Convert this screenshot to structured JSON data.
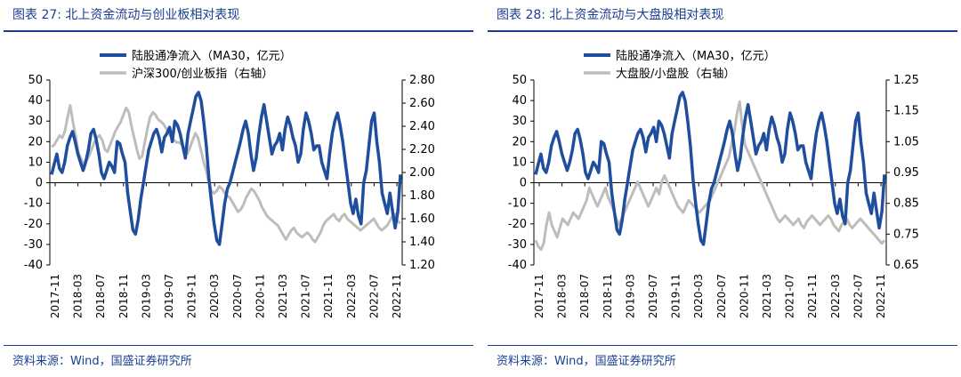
{
  "charts": [
    {
      "title": "图表 27:  北上资金流动与创业板相对表现",
      "source": "资料来源：Wind，国盛证券研究所",
      "chart_data": {
        "type": "line",
        "legend_position": "top",
        "grid": false,
        "x_labels": [
          "2017-11",
          "2018-03",
          "2018-07",
          "2018-11",
          "2019-03",
          "2019-07",
          "2019-11",
          "2020-03",
          "2020-07",
          "2020-11",
          "2021-03",
          "2021-07",
          "2021-11",
          "2022-03",
          "2022-07",
          "2022-11"
        ],
        "y_left": {
          "min": -40,
          "max": 50,
          "ticks": [
            50,
            40,
            30,
            20,
            10,
            0,
            -10,
            -20,
            -30,
            -40
          ]
        },
        "y_right": {
          "min": 1.2,
          "max": 2.8,
          "ticks": [
            "2.80",
            "2.60",
            "2.40",
            "2.20",
            "2.00",
            "1.80",
            "1.60",
            "1.40",
            "1.20"
          ]
        },
        "series": [
          {
            "name": "陆股通净流入（MA30，亿元）",
            "axis": "left",
            "color": "#1f4e9e",
            "values": [
              4,
              9,
              14,
              7,
              5,
              10,
              18,
              22,
              25,
              20,
              14,
              10,
              6,
              10,
              16,
              24,
              26,
              21,
              14,
              5,
              2,
              6,
              10,
              8,
              5,
              20,
              19,
              14,
              10,
              -5,
              -14,
              -23,
              -25,
              -18,
              -8,
              0,
              8,
              16,
              20,
              24,
              26,
              22,
              15,
              22,
              24,
              27,
              20,
              30,
              28,
              24,
              18,
              12,
              24,
              30,
              36,
              42,
              44,
              40,
              30,
              18,
              2,
              -10,
              -20,
              -28,
              -30,
              -20,
              -10,
              -3,
              0,
              5,
              10,
              15,
              20,
              26,
              30,
              24,
              14,
              6,
              12,
              23,
              32,
              38,
              30,
              22,
              14,
              18,
              20,
              24,
              16,
              26,
              32,
              28,
              22,
              18,
              10,
              14,
              26,
              34,
              30,
              24,
              16,
              18,
              18,
              10,
              6,
              2,
              14,
              24,
              30,
              34,
              28,
              20,
              10,
              0,
              -10,
              -15,
              -8,
              -16,
              -20,
              0,
              6,
              18,
              30,
              34,
              20,
              10,
              -5,
              -10,
              -15,
              -5,
              -14,
              -22,
              -14,
              4
            ]
          },
          {
            "name": "沪深300/创业板指（右轴）",
            "axis": "right",
            "color": "#bdbdbd",
            "values": [
              2.22,
              2.24,
              2.28,
              2.32,
              2.3,
              2.36,
              2.48,
              2.58,
              2.44,
              2.32,
              2.18,
              2.12,
              2.08,
              2.1,
              2.14,
              2.2,
              2.26,
              2.3,
              2.32,
              2.28,
              2.2,
              2.18,
              2.24,
              2.3,
              2.36,
              2.4,
              2.44,
              2.5,
              2.56,
              2.52,
              2.4,
              2.3,
              2.2,
              2.12,
              2.14,
              2.26,
              2.38,
              2.48,
              2.52,
              2.5,
              2.46,
              2.44,
              2.42,
              2.38,
              2.34,
              2.3,
              2.28,
              2.26,
              2.26,
              2.24,
              2.18,
              2.16,
              2.22,
              2.28,
              2.34,
              2.3,
              2.2,
              2.1,
              2.02,
              1.92,
              1.84,
              1.82,
              1.84,
              1.88,
              1.86,
              1.82,
              1.8,
              1.78,
              1.74,
              1.7,
              1.66,
              1.68,
              1.72,
              1.78,
              1.82,
              1.86,
              1.84,
              1.8,
              1.76,
              1.7,
              1.66,
              1.62,
              1.6,
              1.58,
              1.56,
              1.54,
              1.5,
              1.46,
              1.42,
              1.46,
              1.5,
              1.52,
              1.48,
              1.46,
              1.44,
              1.46,
              1.48,
              1.46,
              1.42,
              1.4,
              1.44,
              1.48,
              1.54,
              1.58,
              1.6,
              1.62,
              1.64,
              1.6,
              1.58,
              1.62,
              1.64,
              1.6,
              1.58,
              1.56,
              1.54,
              1.52,
              1.5,
              1.52,
              1.54,
              1.56,
              1.58,
              1.6,
              1.56,
              1.52,
              1.5,
              1.52,
              1.54,
              1.58,
              1.62,
              1.64,
              1.58,
              1.56
            ]
          }
        ]
      }
    },
    {
      "title": "图表 28:  北上资金流动与大盘股相对表现",
      "source": "资料来源：Wind，国盛证券研究所",
      "chart_data": {
        "type": "line",
        "legend_position": "top",
        "grid": false,
        "x_labels": [
          "2017-11",
          "2018-03",
          "2018-07",
          "2018-11",
          "2019-03",
          "2019-07",
          "2019-11",
          "2020-03",
          "2020-07",
          "2020-11",
          "2021-03",
          "2021-07",
          "2021-11",
          "2022-03",
          "2022-07",
          "2022-11"
        ],
        "y_left": {
          "min": -40,
          "max": 50,
          "ticks": [
            50,
            40,
            30,
            20,
            10,
            0,
            -10,
            -20,
            -30,
            -40
          ]
        },
        "y_right": {
          "min": 0.65,
          "max": 1.25,
          "ticks": [
            "1.25",
            "1.15",
            "1.05",
            "0.95",
            "0.85",
            "0.75",
            "0.65"
          ]
        },
        "series": [
          {
            "name": "陆股通净流入（MA30，亿元）",
            "axis": "left",
            "color": "#1f4e9e",
            "values": [
              4,
              9,
              14,
              7,
              5,
              10,
              18,
              22,
              25,
              20,
              14,
              10,
              6,
              10,
              16,
              24,
              26,
              21,
              14,
              5,
              2,
              6,
              10,
              8,
              5,
              20,
              19,
              14,
              10,
              -5,
              -14,
              -23,
              -25,
              -18,
              -8,
              0,
              8,
              16,
              20,
              24,
              26,
              22,
              15,
              22,
              24,
              27,
              20,
              30,
              28,
              24,
              18,
              12,
              24,
              30,
              36,
              42,
              44,
              40,
              30,
              18,
              2,
              -10,
              -20,
              -28,
              -30,
              -20,
              -10,
              -3,
              0,
              5,
              10,
              15,
              20,
              26,
              30,
              24,
              14,
              6,
              12,
              23,
              32,
              38,
              30,
              22,
              14,
              18,
              20,
              24,
              16,
              26,
              32,
              28,
              22,
              18,
              10,
              14,
              26,
              34,
              30,
              24,
              16,
              18,
              18,
              10,
              6,
              2,
              14,
              24,
              30,
              34,
              28,
              20,
              10,
              0,
              -10,
              -15,
              -8,
              -16,
              -20,
              0,
              6,
              18,
              30,
              34,
              20,
              10,
              -5,
              -10,
              -15,
              -5,
              -14,
              -22,
              -14,
              4
            ]
          },
          {
            "name": "大盘股/小盘股（右轴）",
            "axis": "right",
            "color": "#bdbdbd",
            "values": [
              0.73,
              0.71,
              0.7,
              0.72,
              0.78,
              0.82,
              0.78,
              0.76,
              0.74,
              0.77,
              0.8,
              0.79,
              0.78,
              0.8,
              0.82,
              0.81,
              0.8,
              0.82,
              0.84,
              0.86,
              0.9,
              0.88,
              0.86,
              0.84,
              0.86,
              0.88,
              0.9,
              0.87,
              0.85,
              0.83,
              0.8,
              0.78,
              0.8,
              0.82,
              0.84,
              0.86,
              0.88,
              0.9,
              0.92,
              0.9,
              0.88,
              0.86,
              0.84,
              0.86,
              0.88,
              0.9,
              0.88,
              0.92,
              0.94,
              0.92,
              0.9,
              0.88,
              0.86,
              0.84,
              0.83,
              0.82,
              0.84,
              0.86,
              0.85,
              0.84,
              0.83,
              0.82,
              0.83,
              0.84,
              0.85,
              0.86,
              0.88,
              0.9,
              0.92,
              0.94,
              0.96,
              0.98,
              1.0,
              1.04,
              1.08,
              1.14,
              1.18,
              1.1,
              1.04,
              1.02,
              1.0,
              0.98,
              0.96,
              0.94,
              0.92,
              0.9,
              0.88,
              0.86,
              0.84,
              0.82,
              0.8,
              0.79,
              0.8,
              0.81,
              0.8,
              0.79,
              0.78,
              0.79,
              0.8,
              0.78,
              0.77,
              0.79,
              0.8,
              0.81,
              0.8,
              0.79,
              0.78,
              0.79,
              0.8,
              0.81,
              0.8,
              0.78,
              0.77,
              0.76,
              0.78,
              0.79,
              0.8,
              0.78,
              0.77,
              0.78,
              0.79,
              0.8,
              0.79,
              0.78,
              0.77,
              0.76,
              0.75,
              0.74,
              0.73,
              0.72,
              0.73
            ]
          }
        ]
      }
    }
  ]
}
